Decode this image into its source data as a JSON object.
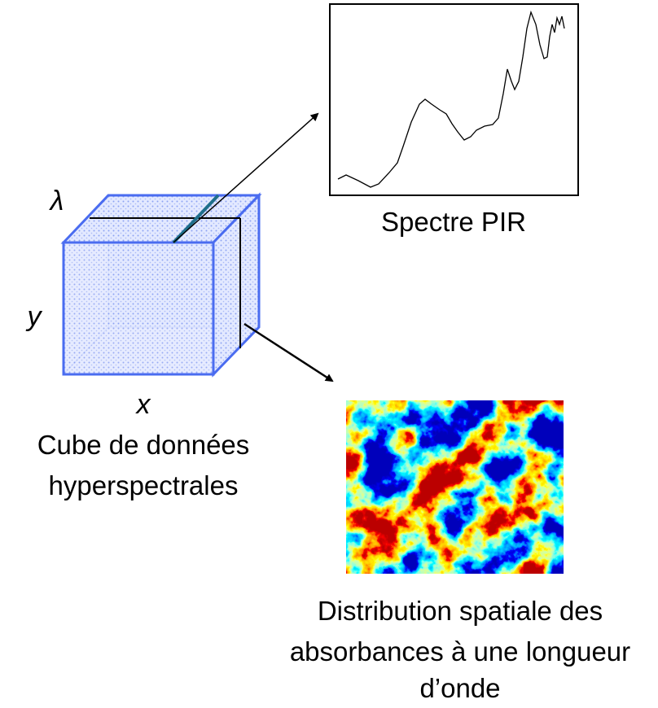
{
  "cube": {
    "axis_lambda": "λ",
    "axis_y": "y",
    "axis_x": "x",
    "caption": [
      "Cube de données",
      "hyperspectrales"
    ]
  },
  "spectrum": {
    "caption": "Spectre PIR"
  },
  "map": {
    "caption": [
      "Distribution spatiale des",
      "absorbances à une longueur",
      "d’onde"
    ]
  }
}
